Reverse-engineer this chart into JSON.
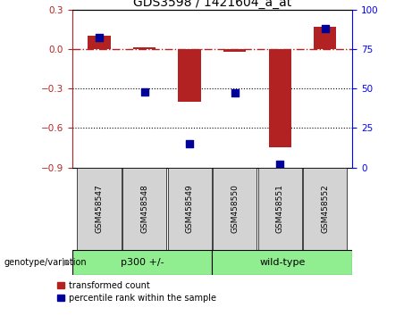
{
  "title": "GDS3598 / 1421604_a_at",
  "samples": [
    "GSM458547",
    "GSM458548",
    "GSM458549",
    "GSM458550",
    "GSM458551",
    "GSM458552"
  ],
  "red_values": [
    0.1,
    0.01,
    -0.4,
    -0.02,
    -0.75,
    0.17
  ],
  "blue_values": [
    82,
    48,
    15,
    47,
    2,
    88
  ],
  "ylim_left": [
    -0.9,
    0.3
  ],
  "ylim_right": [
    0,
    100
  ],
  "yticks_left": [
    -0.9,
    -0.6,
    -0.3,
    0.0,
    0.3
  ],
  "yticks_right": [
    0,
    25,
    50,
    75,
    100
  ],
  "hline_dotted": [
    -0.3,
    -0.6
  ],
  "group1_label": "p300 +/-",
  "group2_label": "wild-type",
  "genotype_label": "genotype/variation",
  "legend1": "transformed count",
  "legend2": "percentile rank within the sample",
  "bar_color": "#b22222",
  "dot_color": "#000099",
  "group_color": "#90EE90",
  "bg_color": "#d3d3d3",
  "bar_width": 0.5,
  "dot_size": 35,
  "title_fontsize": 10,
  "tick_fontsize": 7.5,
  "label_fontsize": 7.5
}
